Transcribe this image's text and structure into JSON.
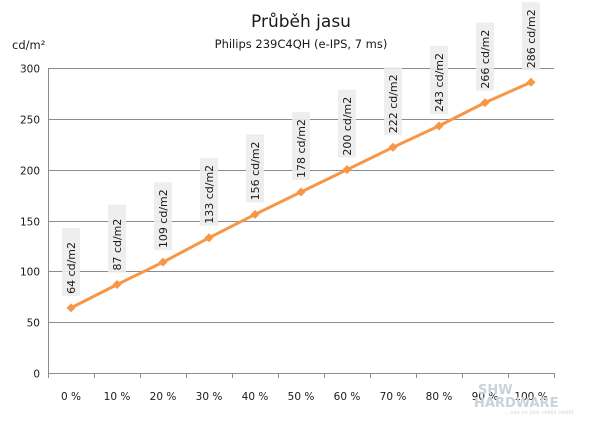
{
  "chart_data": {
    "type": "line",
    "title": "Průběh jasu",
    "subtitle": "Philips 239C4QH  (e-IPS, 7 ms)",
    "ylabel": "cd/m²",
    "xlabel": "",
    "categories": [
      "0 %",
      "10 %",
      "20 %",
      "30 %",
      "40 %",
      "50 %",
      "60 %",
      "70 %",
      "80 %",
      "90 %",
      "100 %"
    ],
    "series": [
      {
        "values": [
          64,
          87,
          109,
          133,
          156,
          178,
          200,
          222,
          243,
          266,
          286
        ],
        "labels": [
          "64 cd/m2",
          "87 cd/m2",
          "109 cd/m2",
          "133 cd/m2",
          "156 cd/m2",
          "178 cd/m2",
          "200 cd/m2",
          "222 cd/m2",
          "243 cd/m2",
          "266 cd/m2",
          "286 cd/m2"
        ],
        "color": "#f79646"
      }
    ],
    "ylim": [
      0,
      300
    ],
    "yticks": [
      0,
      50,
      100,
      150,
      200,
      250,
      300
    ],
    "grid": true,
    "legend": "none"
  },
  "watermark": {
    "text": "SHW HARDWARE",
    "tagline": "...vše co jste chtěli vědět"
  }
}
